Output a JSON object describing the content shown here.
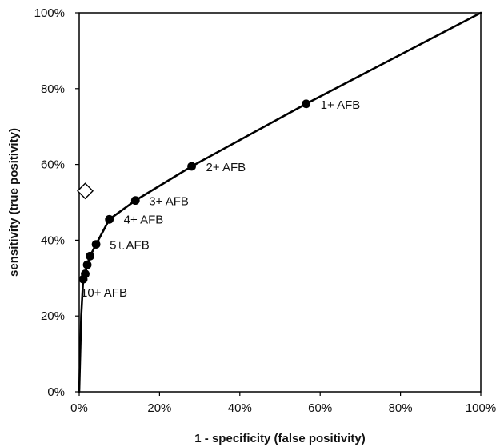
{
  "chart_data": {
    "type": "line",
    "title": "",
    "xlabel": "1 - specificity (false positivity)",
    "ylabel": "sensitivity (true positivity)",
    "xlim": [
      0,
      100
    ],
    "ylim": [
      0,
      100
    ],
    "x_ticks": [
      "0%",
      "20%",
      "40%",
      "60%",
      "80%",
      "100%"
    ],
    "y_ticks": [
      "0%",
      "20%",
      "40%",
      "60%",
      "80%",
      "100%"
    ],
    "grid": false,
    "legend": "none",
    "colors": {
      "line": "#000000",
      "marker": "#000000",
      "frame": "#000000",
      "diamond_fill": "#ffffff",
      "diamond_stroke": "#000000"
    },
    "series": [
      {
        "type": "line",
        "x": [
          0,
          0.5,
          1.0,
          1.5,
          2.0,
          2.7,
          4.2,
          7.5,
          14.0,
          28.0,
          56.5,
          100
        ],
        "y": [
          0,
          20.0,
          29.7,
          31.1,
          33.5,
          35.8,
          38.9,
          45.5,
          50.5,
          59.5,
          76.0,
          100
        ]
      },
      {
        "type": "scatter",
        "marker": "circle",
        "x": [
          1.0,
          1.5,
          2.0,
          2.7,
          4.2,
          7.5,
          14.0,
          28.0,
          56.5
        ],
        "y": [
          29.7,
          31.1,
          33.5,
          35.8,
          38.9,
          45.5,
          50.5,
          59.5,
          76.0
        ]
      },
      {
        "type": "scatter",
        "marker": "diamond",
        "x": [
          1.5
        ],
        "y": [
          53.0
        ]
      }
    ],
    "annotations": [
      {
        "text": "1+ AFB",
        "x": 56.5,
        "y": 76.0
      },
      {
        "text": "2+ AFB",
        "x": 28.0,
        "y": 59.5
      },
      {
        "text": "3+ AFB",
        "x": 14.0,
        "y": 50.5
      },
      {
        "text": "4+ AFB",
        "x": 7.5,
        "y": 45.5
      },
      {
        "text": "5+ AFB",
        "x": 4.2,
        "y": 38.9
      },
      {
        "text": "...",
        "x": 4.2,
        "y": 35.0
      },
      {
        "text": "10+ AFB",
        "x": 1.0,
        "y": 29.7
      }
    ]
  }
}
